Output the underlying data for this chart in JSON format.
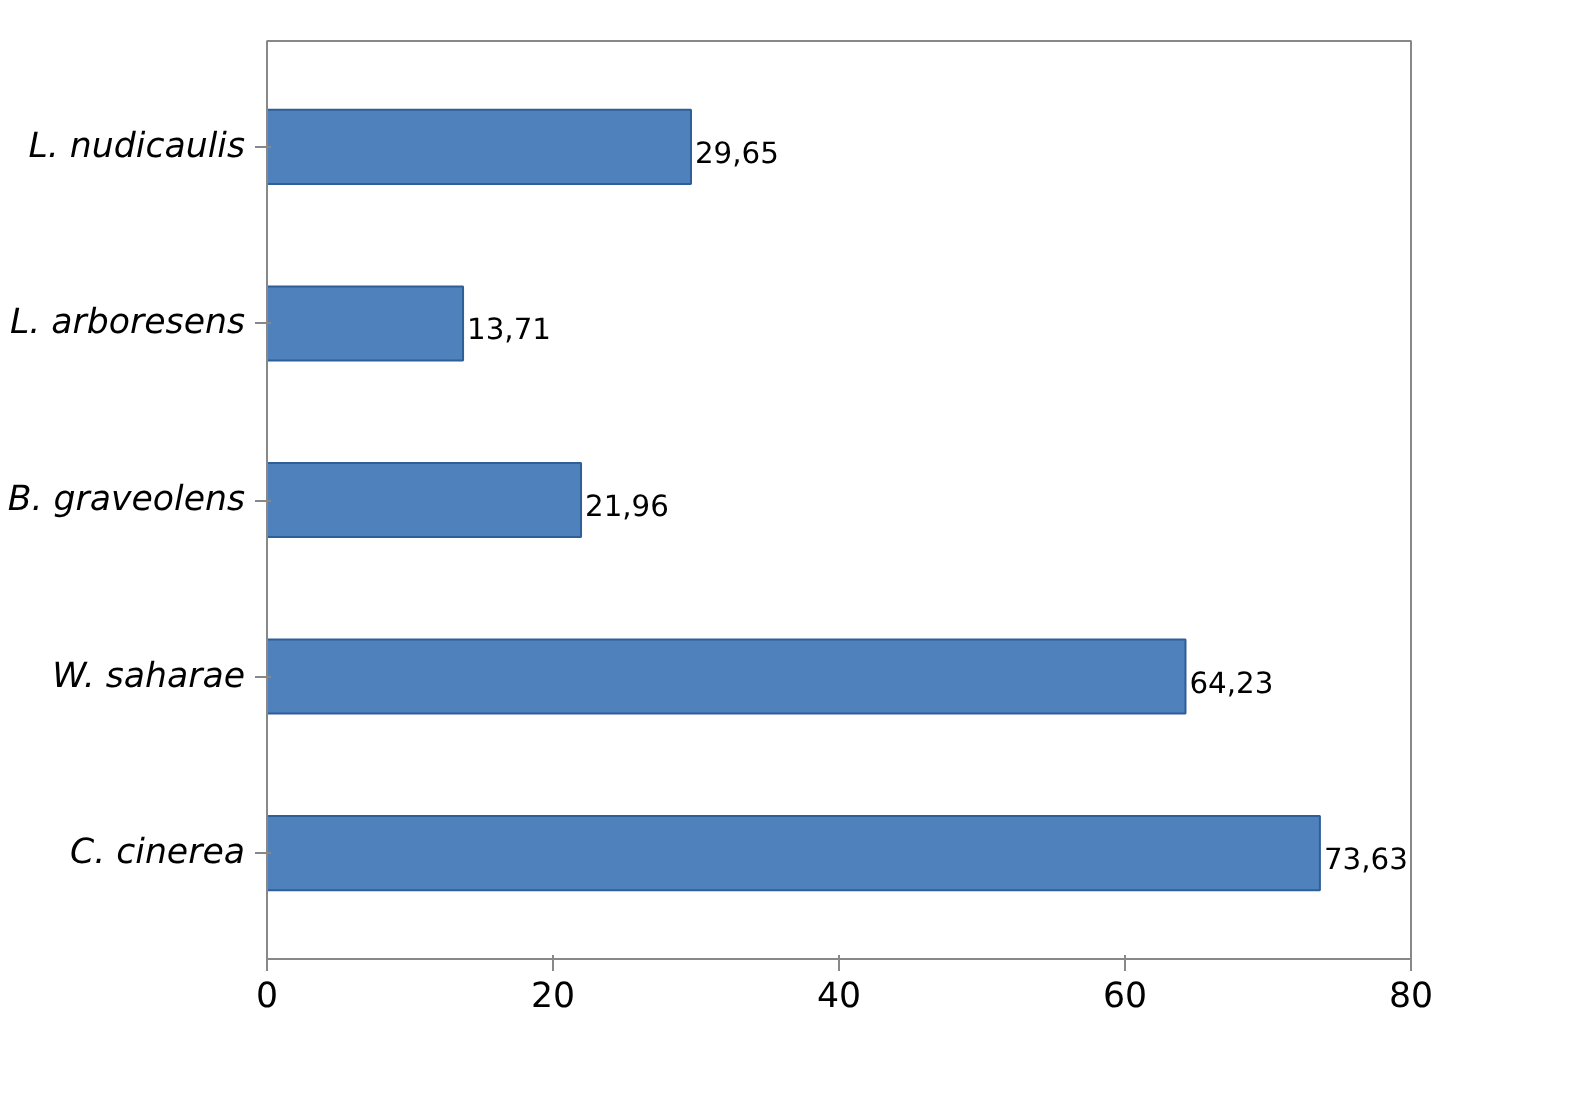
{
  "chart_data": {
    "type": "bar",
    "orientation": "horizontal",
    "categories": [
      "L. nudicaulis",
      "L. arboresens",
      "B. graveolens",
      "W. saharae",
      "C. cinerea"
    ],
    "values": [
      29.65,
      13.71,
      21.96,
      64.23,
      73.63
    ],
    "value_labels": [
      "29,65",
      "13,71",
      "21,96",
      "64,23",
      "73,63"
    ],
    "color": "#4f81bd",
    "xlim": [
      0,
      80
    ],
    "xticks": [
      0,
      20,
      40,
      60,
      80
    ],
    "grid": false
  }
}
